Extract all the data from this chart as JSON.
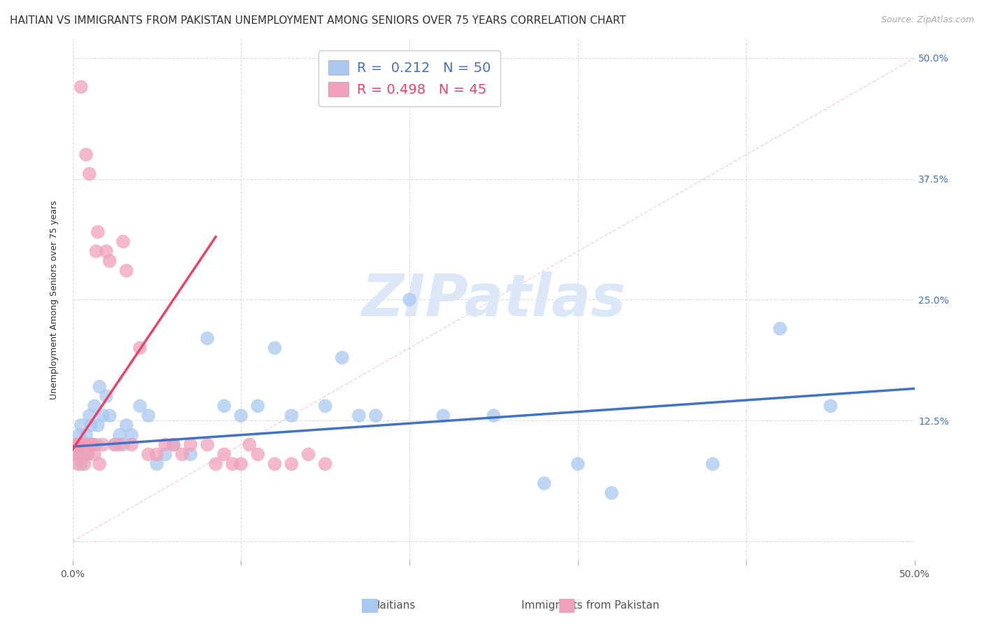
{
  "title": "HAITIAN VS IMMIGRANTS FROM PAKISTAN UNEMPLOYMENT AMONG SENIORS OVER 75 YEARS CORRELATION CHART",
  "source": "Source: ZipAtlas.com",
  "ylabel": "Unemployment Among Seniors over 75 years",
  "xlim": [
    0.0,
    0.5
  ],
  "ylim": [
    -0.02,
    0.52
  ],
  "legend_labels": [
    "Haitians",
    "Immigrants from Pakistan"
  ],
  "legend_r": [
    "0.212",
    "0.498"
  ],
  "legend_n": [
    "50",
    "45"
  ],
  "blue_color": "#A8C8F0",
  "pink_color": "#F0A0B8",
  "blue_line_color": "#4472C4",
  "pink_line_color": "#E8436A",
  "watermark_color": "#DCE8F8",
  "background_color": "#FFFFFF",
  "grid_color": "#DDDDDD",
  "title_fontsize": 11,
  "axis_label_fontsize": 9,
  "tick_fontsize": 10,
  "source_fontsize": 9,
  "haitians_x": [
    0.002,
    0.003,
    0.004,
    0.005,
    0.005,
    0.006,
    0.007,
    0.008,
    0.009,
    0.01,
    0.01,
    0.011,
    0.012,
    0.013,
    0.014,
    0.015,
    0.016,
    0.018,
    0.02,
    0.022,
    0.025,
    0.028,
    0.03,
    0.032,
    0.035,
    0.04,
    0.045,
    0.05,
    0.055,
    0.06,
    0.07,
    0.08,
    0.09,
    0.1,
    0.11,
    0.12,
    0.13,
    0.15,
    0.16,
    0.17,
    0.18,
    0.2,
    0.22,
    0.25,
    0.28,
    0.3,
    0.32,
    0.38,
    0.42,
    0.45
  ],
  "haitians_y": [
    0.1,
    0.09,
    0.11,
    0.08,
    0.12,
    0.1,
    0.09,
    0.11,
    0.1,
    0.13,
    0.1,
    0.12,
    0.1,
    0.14,
    0.1,
    0.12,
    0.16,
    0.13,
    0.15,
    0.13,
    0.1,
    0.11,
    0.1,
    0.12,
    0.11,
    0.14,
    0.13,
    0.08,
    0.09,
    0.1,
    0.09,
    0.21,
    0.14,
    0.13,
    0.14,
    0.2,
    0.13,
    0.14,
    0.19,
    0.13,
    0.13,
    0.25,
    0.13,
    0.13,
    0.06,
    0.08,
    0.05,
    0.08,
    0.22,
    0.14
  ],
  "pakistan_x": [
    0.001,
    0.002,
    0.003,
    0.004,
    0.005,
    0.005,
    0.006,
    0.007,
    0.008,
    0.008,
    0.009,
    0.01,
    0.01,
    0.011,
    0.012,
    0.013,
    0.014,
    0.015,
    0.016,
    0.018,
    0.02,
    0.022,
    0.025,
    0.028,
    0.03,
    0.032,
    0.035,
    0.04,
    0.045,
    0.05,
    0.055,
    0.06,
    0.065,
    0.07,
    0.08,
    0.085,
    0.09,
    0.095,
    0.1,
    0.105,
    0.11,
    0.12,
    0.13,
    0.14,
    0.15
  ],
  "pakistan_y": [
    0.09,
    0.1,
    0.08,
    0.1,
    0.09,
    0.47,
    0.1,
    0.08,
    0.1,
    0.4,
    0.09,
    0.1,
    0.38,
    0.1,
    0.1,
    0.09,
    0.3,
    0.32,
    0.08,
    0.1,
    0.3,
    0.29,
    0.1,
    0.1,
    0.31,
    0.28,
    0.1,
    0.2,
    0.09,
    0.09,
    0.1,
    0.1,
    0.09,
    0.1,
    0.1,
    0.08,
    0.09,
    0.08,
    0.08,
    0.1,
    0.09,
    0.08,
    0.08,
    0.09,
    0.08
  ],
  "blue_trend_x0": 0.0,
  "blue_trend_y0": 0.098,
  "blue_trend_x1": 0.5,
  "blue_trend_y1": 0.158,
  "pink_trend_x0": 0.0,
  "pink_trend_y0": 0.095,
  "pink_trend_x1": 0.085,
  "pink_trend_y1": 0.315
}
